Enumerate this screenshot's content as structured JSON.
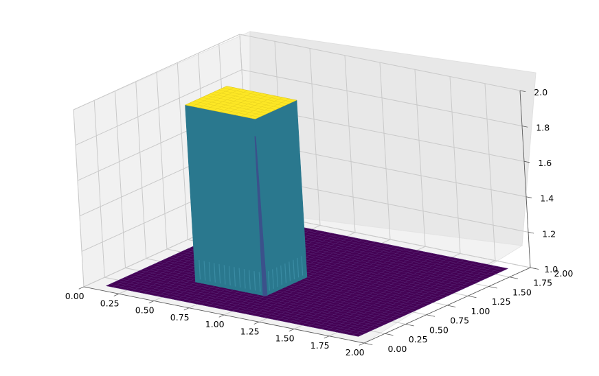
{
  "chart_data": {
    "type": "surface-3d",
    "title": "",
    "xlabel": "",
    "ylabel": "",
    "zlabel": "",
    "xlim": [
      0,
      2
    ],
    "ylim": [
      0,
      2
    ],
    "zlim": [
      1,
      2
    ],
    "grid": true,
    "colormap": "viridis",
    "x_ticks": [
      "0.00",
      "0.25",
      "0.50",
      "0.75",
      "1.00",
      "1.25",
      "1.50",
      "1.75",
      "2.00"
    ],
    "y_ticks": [
      "0.00",
      "0.25",
      "0.50",
      "0.75",
      "1.00",
      "1.25",
      "1.50",
      "1.75",
      "2.00"
    ],
    "z_ticks": [
      "1.0",
      "1.2",
      "1.4",
      "1.6",
      "1.8",
      "2.0"
    ],
    "surface": {
      "base_z": 1.0,
      "plateau_z": 2.0,
      "plateau_x_range": [
        0.5,
        1.0
      ],
      "plateau_y_range": [
        0.5,
        1.0
      ],
      "colors": {
        "base": "#440154",
        "plateau": "#fde725",
        "wall": "#2a788e",
        "wall_light": "#3a8ba3",
        "wall_dark": "#3b518b",
        "mesh": "#5a2d7a"
      }
    }
  }
}
